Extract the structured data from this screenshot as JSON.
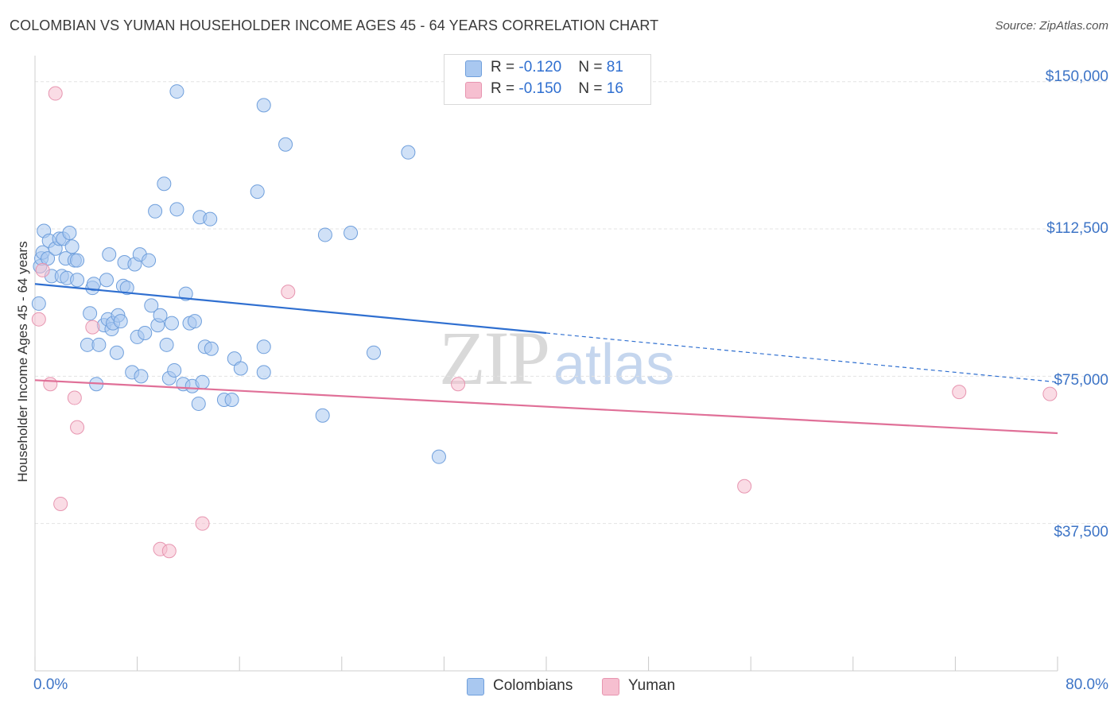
{
  "title": "COLOMBIAN VS YUMAN HOUSEHOLDER INCOME AGES 45 - 64 YEARS CORRELATION CHART",
  "source": "Source: ZipAtlas.com",
  "watermark": {
    "zip": "ZIP",
    "atlas": "atlas"
  },
  "legend_top": [
    {
      "r_label": "R = ",
      "r_value": "-0.120",
      "n_label": "N = ",
      "n_value": "81"
    },
    {
      "r_label": "R = ",
      "r_value": "-0.150",
      "n_label": "N = ",
      "n_value": "16"
    }
  ],
  "legend_bottom": [
    "Colombians",
    "Yuman"
  ],
  "colors": {
    "colombians_fill": "#a9c8f0",
    "colombians_stroke": "#6f9fdc",
    "colombians_line": "#2f6fd0",
    "yuman_fill": "#f6bfd0",
    "yuman_stroke": "#e795b0",
    "yuman_line": "#e07098",
    "grid": "#e3e3e3",
    "tick_text": "#3d74c6"
  },
  "chart_data": {
    "type": "scatter",
    "title": "COLOMBIAN VS YUMAN HOUSEHOLDER INCOME AGES 45 - 64 YEARS CORRELATION CHART",
    "xlabel": "",
    "ylabel": "Householder Income Ages 45 - 64 years",
    "xlim": [
      0,
      80
    ],
    "ylim": [
      0,
      155000
    ],
    "x_tick_labels": [
      "0.0%",
      "80.0%"
    ],
    "y_ticks": [
      37500,
      75000,
      112500,
      150000
    ],
    "y_tick_labels": [
      "$37,500",
      "$75,000",
      "$112,500",
      "$150,000"
    ],
    "grid": true,
    "series": [
      {
        "name": "Colombians",
        "r": -0.12,
        "n": 81,
        "trend": {
          "x0": 0,
          "y0": 98500,
          "x1": 40,
          "y1": 86000,
          "dash_to_x": 80,
          "dash_to_y": 73500
        },
        "points": [
          [
            0.3,
            93500
          ],
          [
            0.4,
            103000
          ],
          [
            0.5,
            105000
          ],
          [
            0.6,
            106500
          ],
          [
            0.7,
            112000
          ],
          [
            1.0,
            105000
          ],
          [
            1.1,
            109500
          ],
          [
            1.3,
            100500
          ],
          [
            1.6,
            107500
          ],
          [
            1.9,
            110000
          ],
          [
            2.1,
            100500
          ],
          [
            2.2,
            110000
          ],
          [
            2.4,
            105000
          ],
          [
            2.5,
            100000
          ],
          [
            2.7,
            111500
          ],
          [
            2.9,
            108000
          ],
          [
            3.1,
            104500
          ],
          [
            3.3,
            104500
          ],
          [
            3.3,
            99500
          ],
          [
            4.1,
            83000
          ],
          [
            4.3,
            91000
          ],
          [
            4.5,
            97500
          ],
          [
            4.6,
            98500
          ],
          [
            4.8,
            73000
          ],
          [
            5.0,
            83000
          ],
          [
            5.4,
            88000
          ],
          [
            5.6,
            99500
          ],
          [
            5.7,
            89500
          ],
          [
            5.8,
            106000
          ],
          [
            6.0,
            87000
          ],
          [
            6.1,
            88500
          ],
          [
            6.4,
            81000
          ],
          [
            6.5,
            90500
          ],
          [
            6.7,
            89000
          ],
          [
            6.9,
            98000
          ],
          [
            7.0,
            104000
          ],
          [
            7.2,
            97500
          ],
          [
            7.6,
            76000
          ],
          [
            7.8,
            103500
          ],
          [
            8.0,
            85000
          ],
          [
            8.2,
            106000
          ],
          [
            8.3,
            75000
          ],
          [
            8.6,
            86000
          ],
          [
            8.9,
            104500
          ],
          [
            9.1,
            93000
          ],
          [
            9.4,
            117000
          ],
          [
            9.6,
            88000
          ],
          [
            9.8,
            90500
          ],
          [
            10.1,
            124000
          ],
          [
            10.3,
            83000
          ],
          [
            10.5,
            74500
          ],
          [
            10.7,
            88500
          ],
          [
            10.9,
            76500
          ],
          [
            11.1,
            117500
          ],
          [
            11.1,
            147500
          ],
          [
            11.6,
            73000
          ],
          [
            11.8,
            96000
          ],
          [
            12.1,
            88500
          ],
          [
            12.3,
            72500
          ],
          [
            12.5,
            89000
          ],
          [
            12.8,
            68000
          ],
          [
            12.9,
            115500
          ],
          [
            13.1,
            73500
          ],
          [
            13.3,
            82500
          ],
          [
            13.7,
            115000
          ],
          [
            13.8,
            82000
          ],
          [
            14.8,
            69000
          ],
          [
            15.4,
            69000
          ],
          [
            15.6,
            79500
          ],
          [
            16.1,
            77000
          ],
          [
            17.4,
            122000
          ],
          [
            17.9,
            144000
          ],
          [
            17.9,
            82500
          ],
          [
            17.9,
            76000
          ],
          [
            19.6,
            134000
          ],
          [
            22.5,
            65000
          ],
          [
            22.7,
            111000
          ],
          [
            24.7,
            111500
          ],
          [
            26.5,
            81000
          ],
          [
            29.2,
            132000
          ],
          [
            31.6,
            54500
          ]
        ]
      },
      {
        "name": "Yuman",
        "r": -0.15,
        "n": 16,
        "trend": {
          "x0": 0,
          "y0": 74000,
          "x1": 80,
          "y1": 60500
        },
        "points": [
          [
            0.3,
            89500
          ],
          [
            0.6,
            102000
          ],
          [
            1.2,
            73000
          ],
          [
            1.6,
            147000
          ],
          [
            3.1,
            69500
          ],
          [
            3.3,
            62000
          ],
          [
            4.5,
            87500
          ],
          [
            2.0,
            42500
          ],
          [
            9.8,
            31000
          ],
          [
            10.5,
            30500
          ],
          [
            13.1,
            37500
          ],
          [
            19.8,
            96500
          ],
          [
            33.1,
            73000
          ],
          [
            55.5,
            47000
          ],
          [
            72.3,
            71000
          ],
          [
            79.4,
            70500
          ]
        ]
      }
    ]
  }
}
